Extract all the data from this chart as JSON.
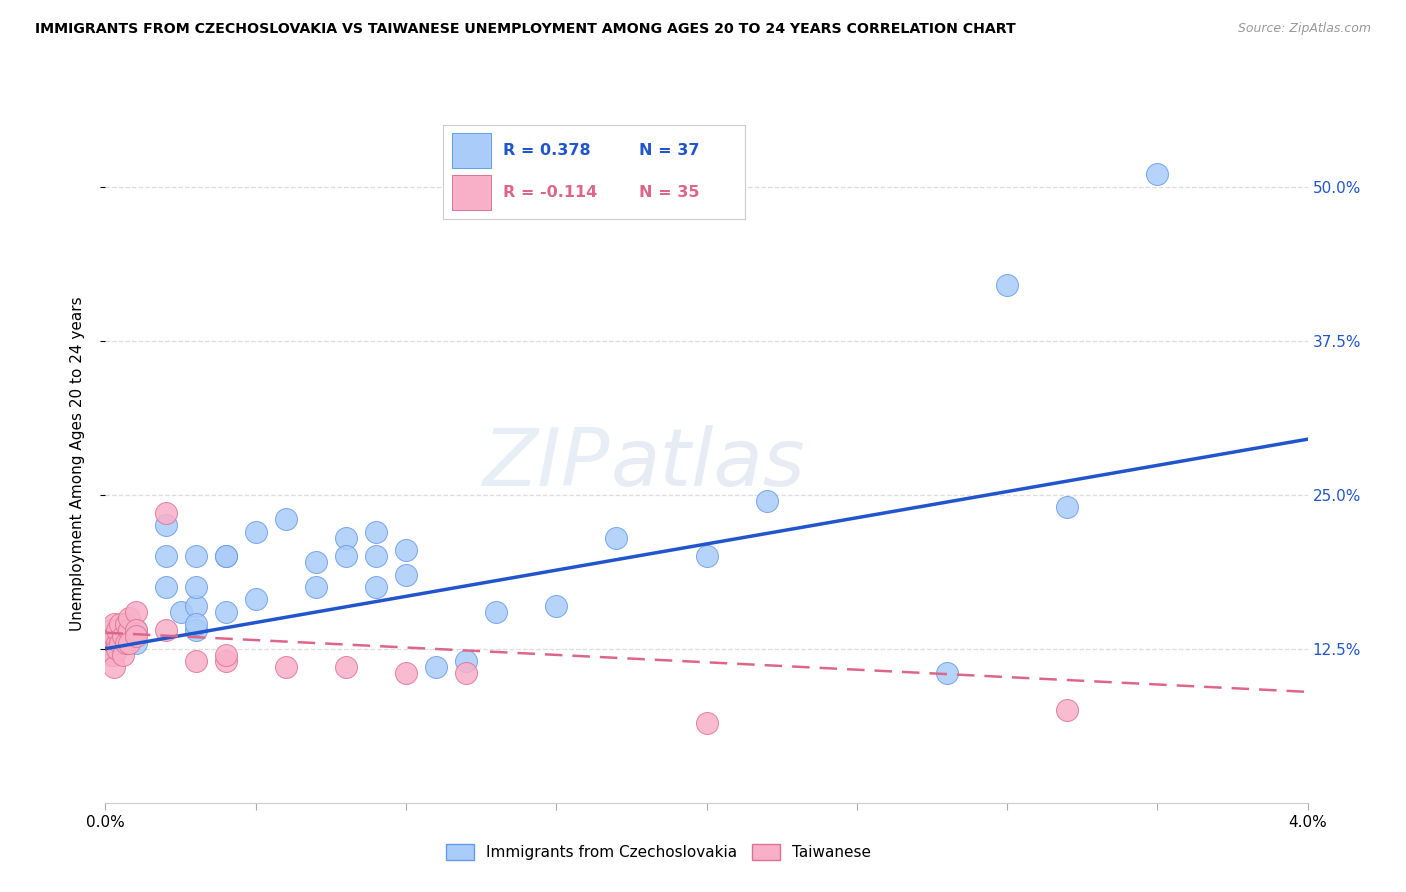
{
  "title": "IMMIGRANTS FROM CZECHOSLOVAKIA VS TAIWANESE UNEMPLOYMENT AMONG AGES 20 TO 24 YEARS CORRELATION CHART",
  "source": "Source: ZipAtlas.com",
  "ylabel": "Unemployment Among Ages 20 to 24 years",
  "y_tick_labels": [
    "12.5%",
    "25.0%",
    "37.5%",
    "50.0%"
  ],
  "y_tick_vals": [
    0.125,
    0.25,
    0.375,
    0.5
  ],
  "x_ticks": [
    0.0,
    0.005,
    0.01,
    0.015,
    0.02,
    0.025,
    0.03,
    0.035,
    0.04
  ],
  "legend_blue_r": "R = 0.378",
  "legend_blue_n": "N = 37",
  "legend_pink_r": "R = -0.114",
  "legend_pink_n": "N = 35",
  "legend_label_blue": "Immigrants from Czechoslovakia",
  "legend_label_pink": "Taiwanese",
  "blue_color": "#aaccf8",
  "blue_edge": "#6699ee",
  "pink_color": "#f8b0c8",
  "pink_edge": "#e07090",
  "blue_line_color": "#2255cc",
  "pink_line_color": "#dd6688",
  "watermark_zip": "ZIP",
  "watermark_atlas": "atlas",
  "blue_scatter_x": [
    0.001,
    0.001,
    0.002,
    0.0025,
    0.002,
    0.002,
    0.003,
    0.003,
    0.003,
    0.003,
    0.003,
    0.004,
    0.004,
    0.004,
    0.005,
    0.005,
    0.006,
    0.007,
    0.007,
    0.008,
    0.008,
    0.009,
    0.009,
    0.009,
    0.01,
    0.01,
    0.011,
    0.012,
    0.013,
    0.015,
    0.017,
    0.02,
    0.022,
    0.028,
    0.03,
    0.032,
    0.035
  ],
  "blue_scatter_y": [
    0.13,
    0.14,
    0.2,
    0.155,
    0.175,
    0.225,
    0.14,
    0.16,
    0.175,
    0.2,
    0.145,
    0.2,
    0.155,
    0.2,
    0.22,
    0.165,
    0.23,
    0.175,
    0.195,
    0.215,
    0.2,
    0.22,
    0.175,
    0.2,
    0.185,
    0.205,
    0.11,
    0.115,
    0.155,
    0.16,
    0.215,
    0.2,
    0.245,
    0.105,
    0.42,
    0.24,
    0.51
  ],
  "pink_scatter_x": [
    0.0001,
    0.0001,
    0.0002,
    0.0002,
    0.0002,
    0.0003,
    0.0003,
    0.0003,
    0.0003,
    0.0004,
    0.0004,
    0.0004,
    0.0005,
    0.0005,
    0.0006,
    0.0006,
    0.0007,
    0.0007,
    0.0008,
    0.0008,
    0.0008,
    0.001,
    0.001,
    0.001,
    0.002,
    0.002,
    0.003,
    0.004,
    0.004,
    0.006,
    0.008,
    0.01,
    0.012,
    0.02,
    0.032
  ],
  "pink_scatter_y": [
    0.135,
    0.125,
    0.14,
    0.13,
    0.12,
    0.135,
    0.12,
    0.11,
    0.145,
    0.13,
    0.125,
    0.14,
    0.145,
    0.13,
    0.135,
    0.12,
    0.145,
    0.13,
    0.14,
    0.15,
    0.13,
    0.155,
    0.14,
    0.135,
    0.235,
    0.14,
    0.115,
    0.115,
    0.12,
    0.11,
    0.11,
    0.105,
    0.105,
    0.065,
    0.075
  ],
  "blue_line_x0": 0.0,
  "blue_line_y0": 0.125,
  "blue_line_x1": 0.04,
  "blue_line_y1": 0.295,
  "pink_line_x0": 0.0,
  "pink_line_y0": 0.138,
  "pink_line_x1": 0.04,
  "pink_line_y1": 0.09,
  "xlim": [
    0.0,
    0.04
  ],
  "ylim": [
    0.0,
    0.55
  ],
  "figsize": [
    14.06,
    8.92
  ],
  "dpi": 100
}
